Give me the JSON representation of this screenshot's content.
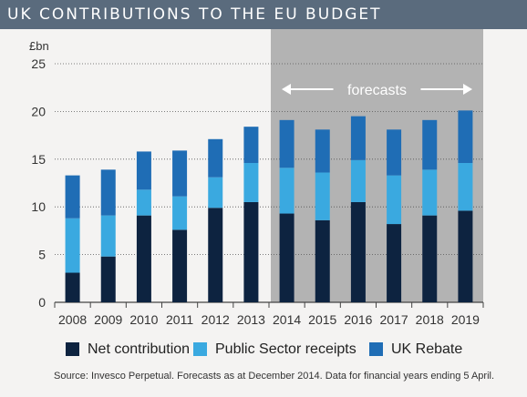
{
  "title": "UK CONTRIBUTIONS TO THE EU BUDGET",
  "source": "Source: Invesco Perpetual. Forecasts as at December 2014. Data for financial years ending 5 April.",
  "colors": {
    "header": "#5a6b7d",
    "net": "#0d2340",
    "public": "#3aa9e0",
    "rebate": "#1f6db5",
    "forecast_shade": "#b3b3b3"
  },
  "chart_data": {
    "type": "bar",
    "stacked": true,
    "ylabel": "£bn",
    "ylim": [
      0,
      25
    ],
    "yticks": [
      "0",
      "5",
      "10",
      "15",
      "20",
      "25"
    ],
    "grid": "horizontal",
    "legend_position": "bottom",
    "categories": [
      "2008",
      "2009",
      "2010",
      "2011",
      "2012",
      "2013",
      "2014",
      "2015",
      "2016",
      "2017",
      "2018",
      "2019"
    ],
    "series": [
      {
        "name": "Net contribution",
        "values": [
          3.1,
          4.8,
          9.1,
          7.6,
          9.9,
          10.5,
          9.3,
          8.6,
          10.5,
          8.2,
          9.1,
          9.6
        ]
      },
      {
        "name": "Public Sector receipts",
        "values": [
          5.7,
          4.3,
          2.7,
          3.5,
          3.2,
          4.1,
          4.8,
          5.0,
          4.4,
          5.1,
          4.8,
          5.0
        ]
      },
      {
        "name": "UK Rebate",
        "values": [
          4.5,
          4.8,
          4.0,
          4.8,
          4.0,
          3.8,
          5.0,
          4.5,
          4.6,
          4.8,
          5.2,
          5.5
        ]
      }
    ],
    "forecast": {
      "label": "forecasts",
      "from": "2014",
      "to": "2019"
    }
  }
}
